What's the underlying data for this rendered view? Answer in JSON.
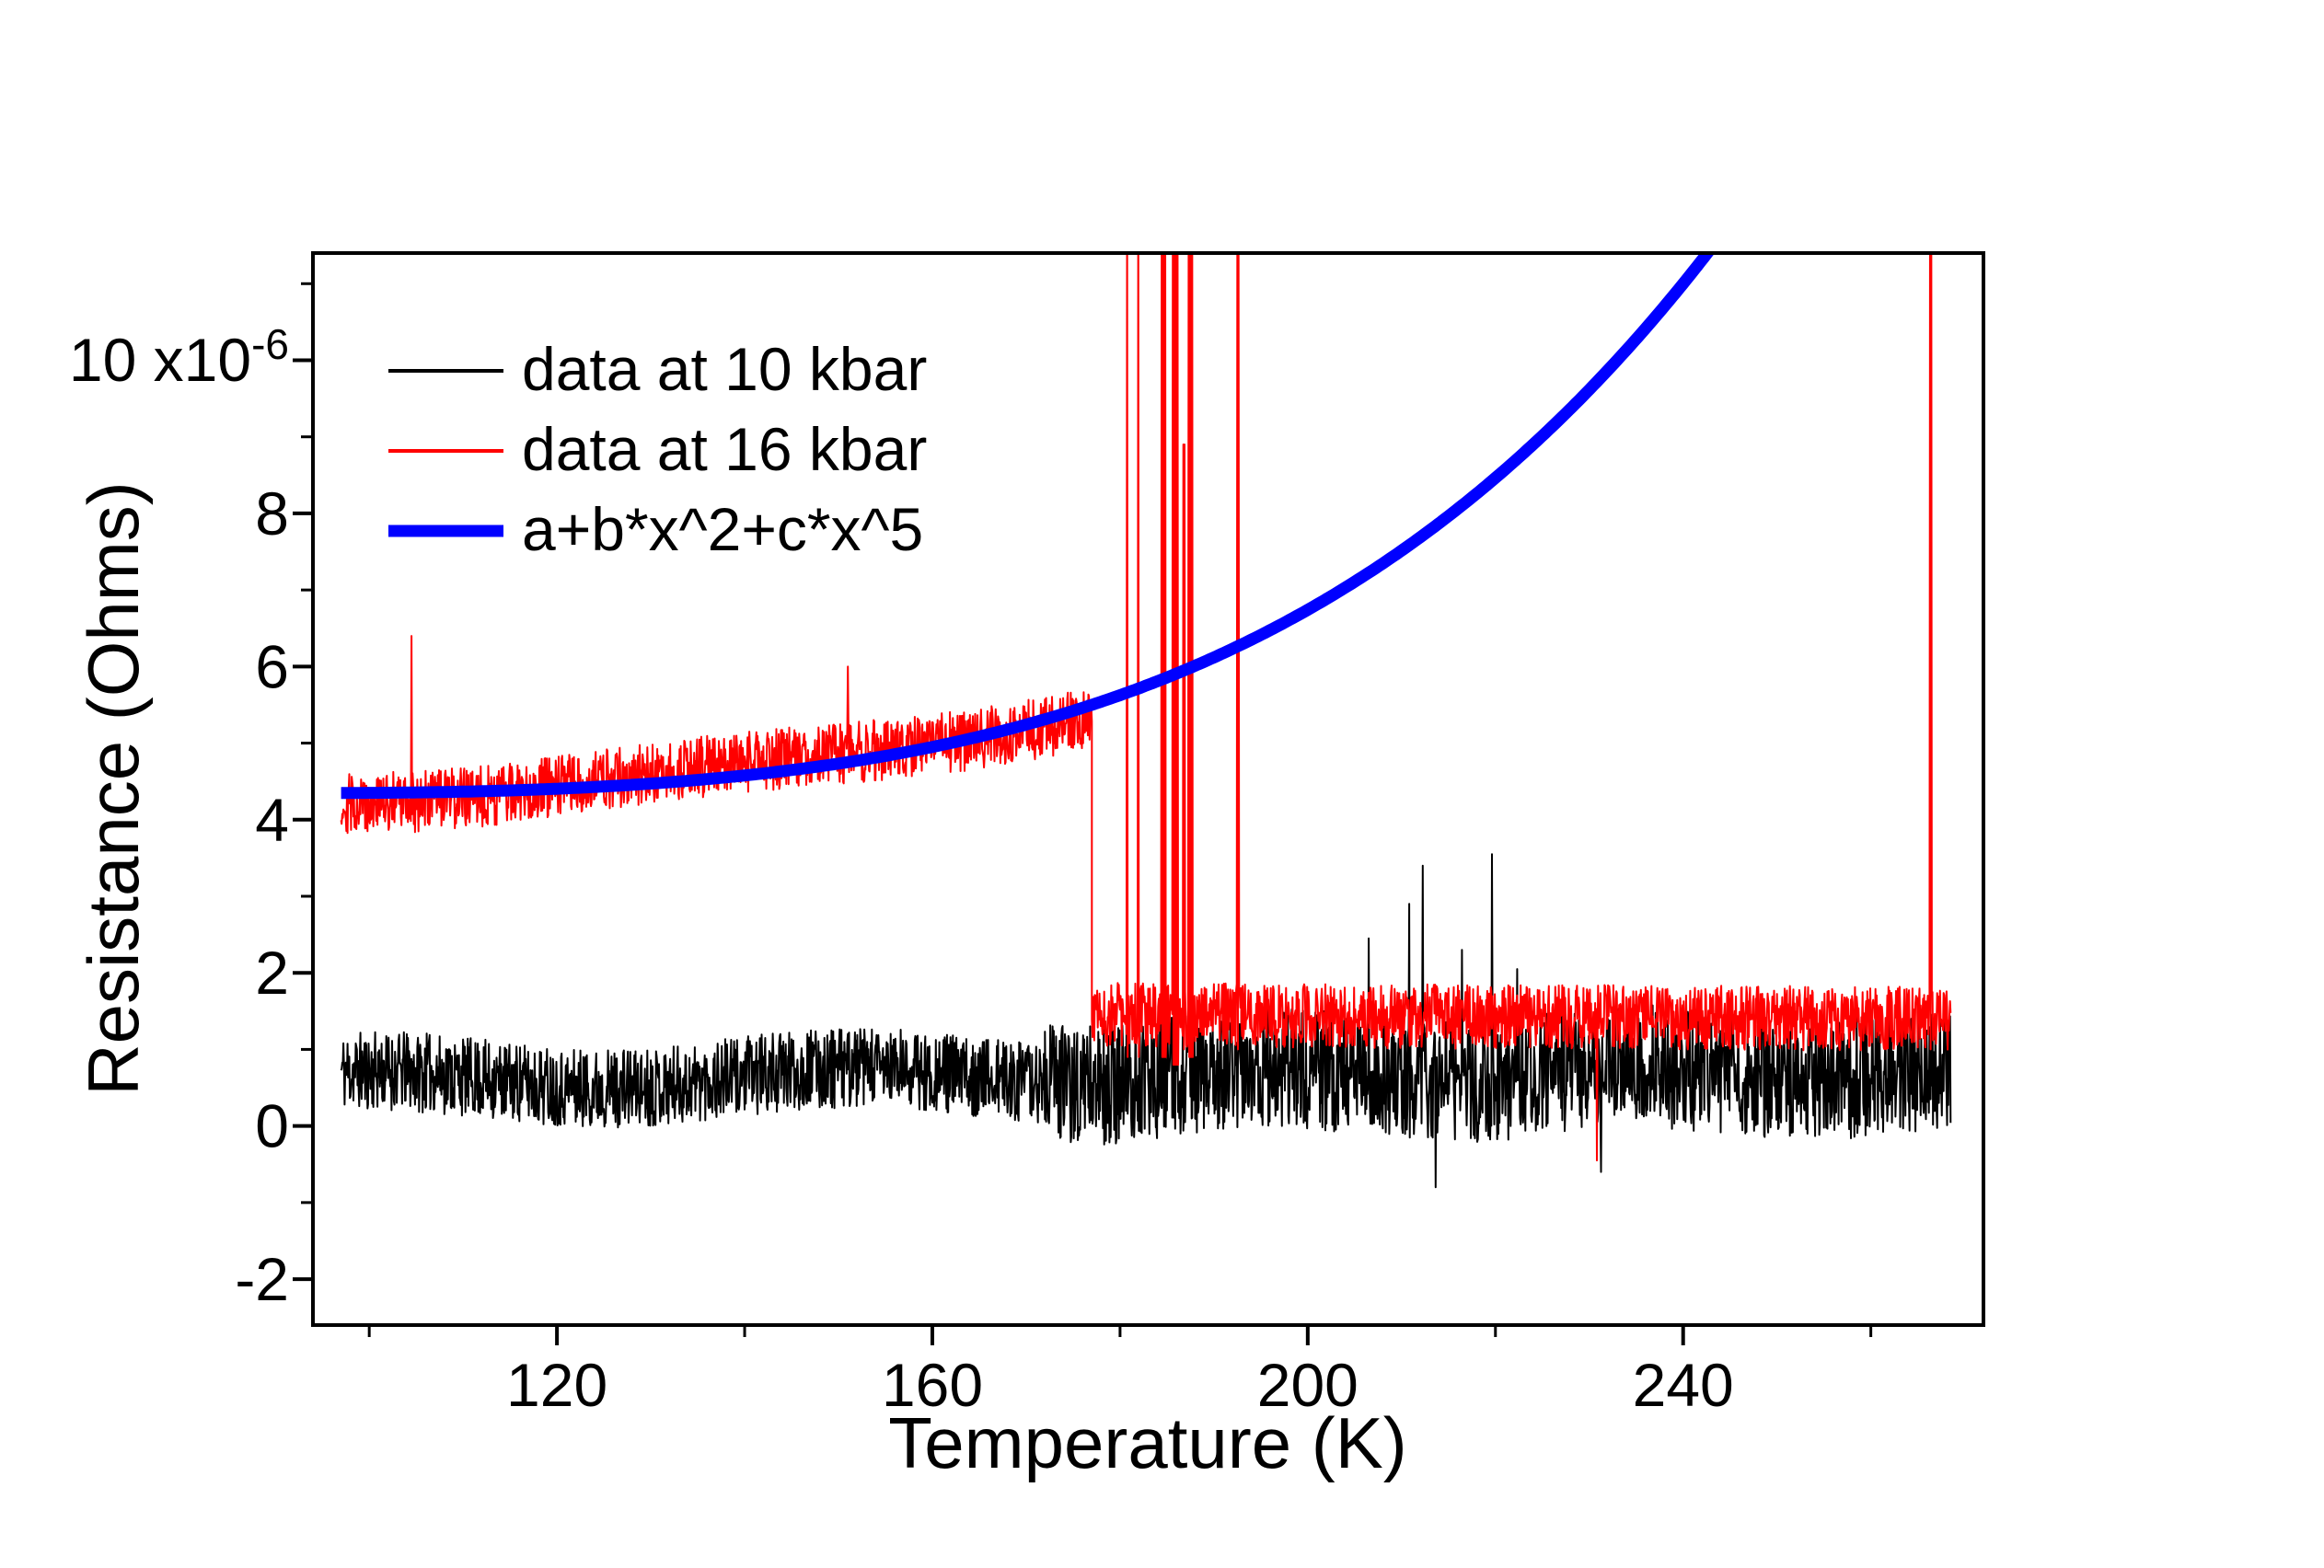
{
  "chart_data": {
    "type": "line",
    "title": "",
    "xlabel": "Temperature (K)",
    "ylabel": "Resistance (Ohms)",
    "y_scale_label": {
      "prefix": "10 x10",
      "exponent": "-6"
    },
    "xlim": [
      94,
      272
    ],
    "ylim": [
      -2.6,
      11.4
    ],
    "grid": false,
    "legend_position": "top-left-inside",
    "xticks": [
      {
        "v": 120,
        "label": "120"
      },
      {
        "v": 160,
        "label": "160"
      },
      {
        "v": 200,
        "label": "200"
      },
      {
        "v": 240,
        "label": "240"
      }
    ],
    "xticks_minor": [
      100,
      140,
      180,
      220,
      260
    ],
    "yticks": [
      {
        "v": -2,
        "label": "-2"
      },
      {
        "v": 0,
        "label": "0"
      },
      {
        "v": 2,
        "label": "2"
      },
      {
        "v": 4,
        "label": "4"
      },
      {
        "v": 6,
        "label": "6"
      },
      {
        "v": 8,
        "label": "8"
      },
      {
        "v": 10,
        "label": ""
      }
    ],
    "yticks_minor": [
      -1,
      1,
      3,
      5,
      7,
      9,
      11
    ],
    "legend": [
      {
        "label": "data at 10 kbar",
        "color": "#000000",
        "line_width": 4
      },
      {
        "label": "data at 16 kbar",
        "color": "#ff0000",
        "line_width": 4
      },
      {
        "label": "a+b*x^2+c*x^5",
        "color": "#0000ff",
        "line_width": 13
      }
    ],
    "series": [
      {
        "name": "data at 10 kbar",
        "color": "#000000",
        "style": "noisy",
        "seed": 11,
        "points_per_K": 16,
        "line_width": 2,
        "segments": [
          {
            "x0": 97,
            "x1": 172,
            "mean0": 0.6,
            "mean1": 0.65,
            "noise": 0.52,
            "pow": 1,
            "wobble": {
              "amp": 0.12,
              "period": 52,
              "phase": 2.1
            }
          },
          {
            "x0": 172,
            "x1": 268.5,
            "mean0": 0.65,
            "mean1": 0.7,
            "noise": 0.8,
            "pow": 1,
            "wobble": {
              "amp": 0.1,
              "period": 38,
              "phase": 0.5
            }
          }
        ],
        "spikes": [
          {
            "x": 206.5,
            "y": 2.45
          },
          {
            "x": 210.8,
            "y": 2.9
          },
          {
            "x": 212.2,
            "y": 3.4
          },
          {
            "x": 213.6,
            "y": -0.8
          },
          {
            "x": 216.4,
            "y": 2.3
          },
          {
            "x": 219.6,
            "y": 3.55
          },
          {
            "x": 222.3,
            "y": 2.05
          },
          {
            "x": 231.2,
            "y": -0.6
          }
        ]
      },
      {
        "name": "data at 16 kbar",
        "color": "#ff0000",
        "style": "noisy",
        "seed": 29,
        "points_per_K": 16,
        "line_width": 2,
        "segments": [
          {
            "x0": 97,
            "x1": 177,
            "mean0": 4.28,
            "mean1": 5.38,
            "noise": 0.4,
            "pow": 1.6,
            "wobble": {
              "amp": 0.07,
              "period": 64,
              "phase": 0.8
            }
          },
          {
            "x0": 177,
            "x1": 268.5,
            "mean0": 1.45,
            "mean1": 1.4,
            "noise": 0.42,
            "pow": 1
          }
        ],
        "spikes": [
          {
            "x": 104.5,
            "y": 6.4
          },
          {
            "x": 151,
            "y": 6.0
          },
          {
            "x": 180.7,
            "y": 12.5,
            "w": 2,
            "ylo": 0.9
          },
          {
            "x": 181.9,
            "y": 12.5,
            "w": 2,
            "ylo": 0.9
          },
          {
            "x": 184.4,
            "y": 12.5,
            "w": 8,
            "ylo": 0.9
          },
          {
            "x": 185.6,
            "y": 12.5,
            "w": 10,
            "ylo": 0.8
          },
          {
            "x": 186.7,
            "y": 8.9,
            "w": 3,
            "ylo": 1.0
          },
          {
            "x": 187.3,
            "y": 12.5,
            "w": 8,
            "ylo": 0.9
          },
          {
            "x": 192.5,
            "y": 12.5,
            "w": 3,
            "ylo": 1.0
          },
          {
            "x": 230.8,
            "y": -0.45
          },
          {
            "x": 266.3,
            "y": 12.5,
            "w": 3,
            "ylo": 1.0
          }
        ]
      },
      {
        "name": "a+b*x^2+c*x^5",
        "color": "#0000ff",
        "style": "function",
        "x0": 97,
        "x1": 244,
        "params": {
          "a": 4.459,
          "b": -2.057e-05,
          "c": 9.703e-12
        },
        "line_width": 13
      }
    ]
  }
}
